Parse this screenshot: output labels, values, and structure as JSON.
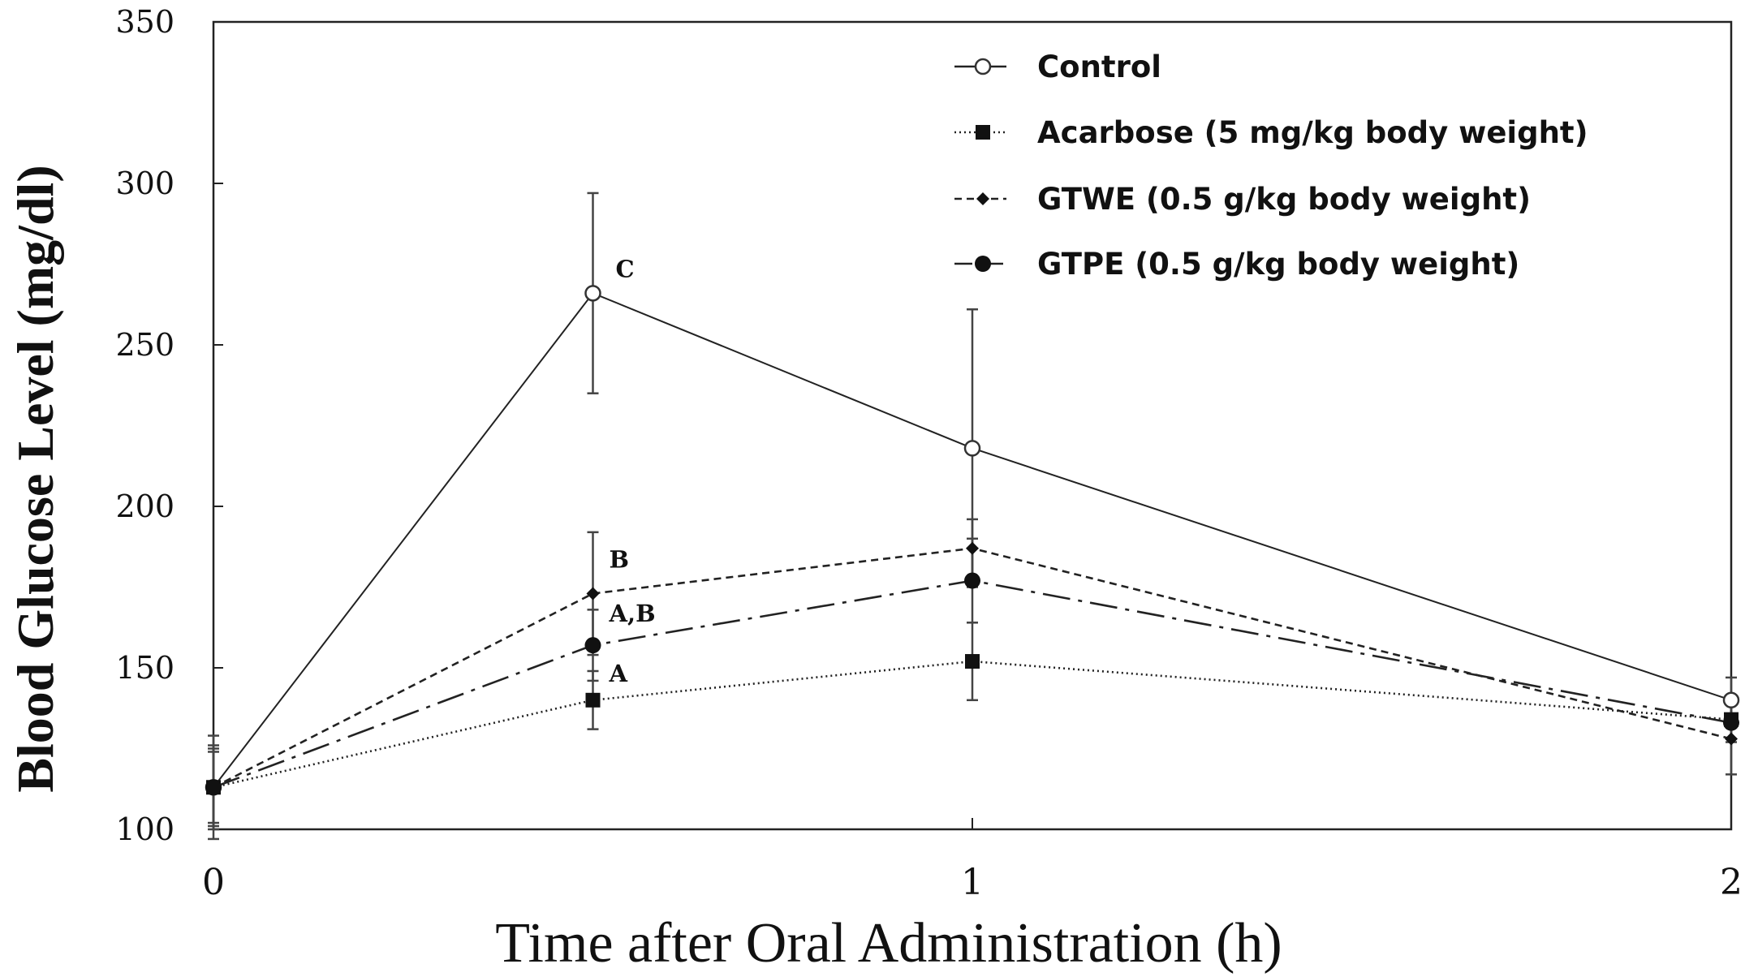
{
  "chart_data": {
    "type": "line",
    "title": "",
    "xlabel": "Time after Oral Administration (h)",
    "ylabel": "Blood Glucose Level (mg/dl)",
    "x": [
      0,
      0.5,
      1,
      2
    ],
    "xticks": [
      0,
      1,
      2
    ],
    "xtick_labels": [
      "0",
      "1",
      "2"
    ],
    "xlim": [
      0,
      2
    ],
    "ylim": [
      100,
      350
    ],
    "yticks": [
      100,
      150,
      200,
      250,
      300,
      350
    ],
    "ytick_labels": [
      "100",
      "150",
      "200",
      "250",
      "300",
      "350"
    ],
    "grid": false,
    "legend_position": "top-right",
    "series": [
      {
        "name": "Control",
        "values": [
          113,
          266,
          218,
          140
        ],
        "errors": [
          16,
          31,
          43,
          7
        ],
        "marker": "open-circle",
        "line_style": "solid"
      },
      {
        "name": "Acarbose (5 mg/kg body weight)",
        "values": [
          113,
          140,
          152,
          134
        ],
        "errors": [
          11,
          9,
          12,
          6
        ],
        "marker": "filled-square",
        "line_style": "dotted"
      },
      {
        "name": "GTWE (0.5 g/kg body weight)",
        "values": [
          113,
          173,
          187,
          128
        ],
        "errors": [
          13,
          19,
          9,
          11
        ],
        "marker": "small-diamond",
        "line_style": "dashed"
      },
      {
        "name": "GTPE (0.5 g/kg body weight)",
        "values": [
          113,
          157,
          177,
          133
        ],
        "errors": [
          12,
          11,
          13,
          6
        ],
        "marker": "filled-circle",
        "line_style": "dash-dot"
      }
    ],
    "annotations": [
      {
        "text": "C",
        "x": 0.5,
        "y": 266
      },
      {
        "text": "B",
        "x": 0.5,
        "y": 173
      },
      {
        "text": "A,B",
        "x": 0.5,
        "y": 157
      },
      {
        "text": "A",
        "x": 0.5,
        "y": 140
      }
    ]
  }
}
